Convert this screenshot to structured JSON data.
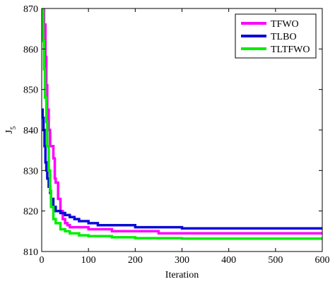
{
  "chart_data": {
    "type": "line",
    "title": "",
    "xlabel": "Iteration",
    "ylabel": "J",
    "ylabel_sub": "5",
    "xlim": [
      0,
      600
    ],
    "ylim": [
      810,
      870
    ],
    "xticks": [
      0,
      100,
      200,
      300,
      400,
      500,
      600
    ],
    "yticks": [
      810,
      820,
      830,
      840,
      850,
      860,
      870
    ],
    "grid": false,
    "legend_position": "top-right",
    "series": [
      {
        "name": "TFWO",
        "color": "#ff00ff",
        "x": [
          0,
          5,
          8,
          10,
          12,
          15,
          18,
          20,
          25,
          28,
          30,
          35,
          40,
          45,
          50,
          55,
          60,
          70,
          80,
          90,
          100,
          120,
          150,
          200,
          250,
          300,
          400,
          500,
          600
        ],
        "y": [
          870,
          866,
          858,
          851,
          845,
          840,
          836,
          836,
          833,
          828,
          827,
          823,
          820,
          818,
          817,
          816.5,
          816,
          816,
          816,
          816,
          815.5,
          815.5,
          815,
          815,
          814.5,
          814.5,
          814.5,
          814.5,
          814.5
        ]
      },
      {
        "name": "TLBO",
        "color": "#0a0ad8",
        "x": [
          0,
          2,
          4,
          6,
          8,
          10,
          12,
          15,
          18,
          20,
          25,
          30,
          40,
          50,
          60,
          70,
          80,
          100,
          120,
          150,
          200,
          250,
          300,
          400,
          500,
          600
        ],
        "y": [
          845,
          843,
          840,
          836,
          832,
          830,
          828,
          826,
          824.5,
          823,
          821,
          820,
          819.5,
          819,
          818.5,
          818,
          817.5,
          817,
          816.5,
          816.5,
          816,
          816,
          815.7,
          815.7,
          815.7,
          815.7
        ]
      },
      {
        "name": "TLTFWO",
        "color": "#00ee00",
        "x": [
          0,
          3,
          5,
          7,
          10,
          12,
          15,
          18,
          20,
          25,
          30,
          40,
          50,
          60,
          80,
          100,
          150,
          200,
          300,
          400,
          500,
          600
        ],
        "y": [
          870,
          862,
          855,
          848,
          842,
          836,
          830,
          825,
          821,
          818,
          817,
          815.5,
          815,
          814.5,
          814,
          813.8,
          813.5,
          813.3,
          813.2,
          813.2,
          813.2,
          813.2
        ]
      }
    ]
  }
}
